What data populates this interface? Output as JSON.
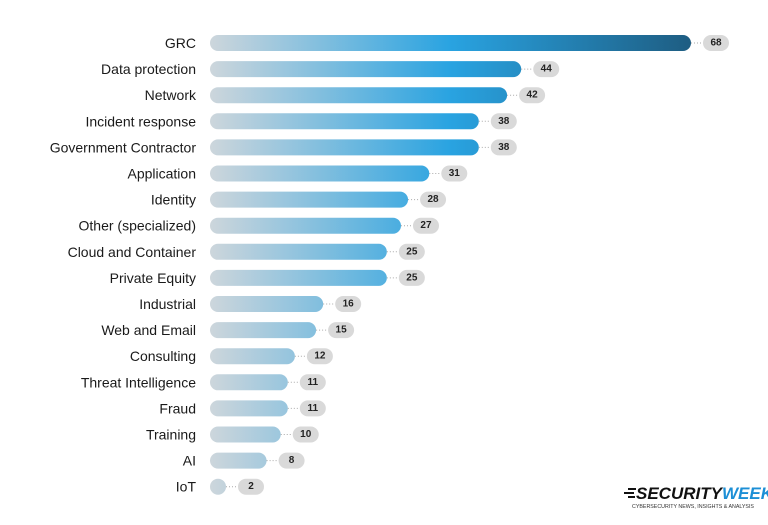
{
  "chart_data": {
    "type": "bar",
    "orientation": "horizontal",
    "categories": [
      "GRC",
      "Data protection",
      "Network",
      "Incident response",
      "Government Contractor",
      "Application",
      "Identity",
      "Other (specialized)",
      "Cloud and Container",
      "Private Equity",
      "Industrial",
      "Web and Email",
      "Consulting",
      "Threat Intelligence",
      "Fraud",
      "Training",
      "AI",
      "IoT"
    ],
    "values": [
      68,
      44,
      42,
      38,
      38,
      31,
      28,
      27,
      25,
      25,
      16,
      15,
      12,
      11,
      11,
      10,
      8,
      2
    ],
    "colors": [
      "#cdd6dc",
      "#29a3e1",
      "#1e5d82"
    ],
    "label_pill_color": "#d9d9d9"
  },
  "logo": {
    "brand": "SECURITY",
    "brand_accent": "WEEK",
    "tagline": "CYBERSECURITY NEWS, INSIGHTS & ANALYSIS"
  }
}
